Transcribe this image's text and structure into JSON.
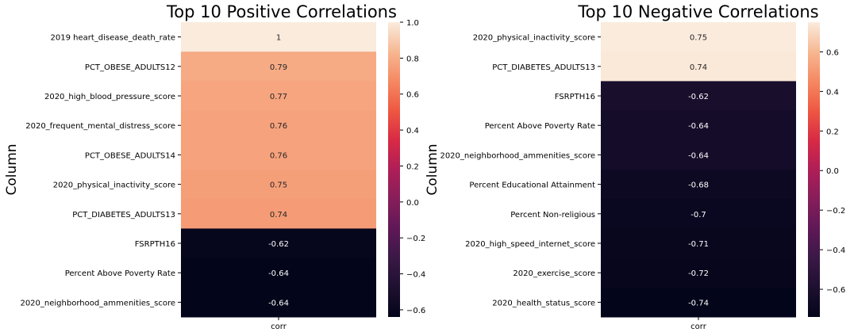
{
  "chart_data": [
    {
      "type": "heatmap",
      "title": "Top 10 Positive Correlations",
      "ylabel": "Column",
      "xlabel": "",
      "x_tick_labels": [
        "corr"
      ],
      "rows": [
        {
          "label": "2019 heart_disease_death_rate",
          "value": 1.0,
          "annotation": "1"
        },
        {
          "label": "PCT_OBESE_ADULTS12",
          "value": 0.79,
          "annotation": "0.79"
        },
        {
          "label": "2020_high_blood_pressure_score",
          "value": 0.77,
          "annotation": "0.77"
        },
        {
          "label": "2020_frequent_mental_distress_score",
          "value": 0.76,
          "annotation": "0.76"
        },
        {
          "label": "PCT_OBESE_ADULTS14",
          "value": 0.76,
          "annotation": "0.76"
        },
        {
          "label": "2020_physical_inactivity_score",
          "value": 0.75,
          "annotation": "0.75"
        },
        {
          "label": "PCT_DIABETES_ADULTS13",
          "value": 0.74,
          "annotation": "0.74"
        },
        {
          "label": "FSRPTH16",
          "value": -0.62,
          "annotation": "-0.62"
        },
        {
          "label": "Percent Above Poverty Rate",
          "value": -0.64,
          "annotation": "-0.64"
        },
        {
          "label": "2020_neighborhood_ammenities_score",
          "value": -0.64,
          "annotation": "-0.64"
        }
      ],
      "colorbar": {
        "colormap": "rocket",
        "vmin": -0.64,
        "vmax": 1.0,
        "ticks": [
          -0.6,
          -0.4,
          -0.2,
          0.0,
          0.2,
          0.4,
          0.6,
          0.8,
          1.0
        ],
        "tick_labels": [
          "−0.6",
          "−0.4",
          "−0.2",
          "0.0",
          "0.2",
          "0.4",
          "0.6",
          "0.8",
          "1.0"
        ]
      }
    },
    {
      "type": "heatmap",
      "title": "Top 10 Negative Correlations",
      "ylabel": "Column",
      "xlabel": "",
      "x_tick_labels": [
        "corr"
      ],
      "rows": [
        {
          "label": "2020_physical_inactivity_score",
          "value": 0.75,
          "annotation": "0.75"
        },
        {
          "label": "PCT_DIABETES_ADULTS13",
          "value": 0.74,
          "annotation": "0.74"
        },
        {
          "label": "FSRPTH16",
          "value": -0.62,
          "annotation": "-0.62"
        },
        {
          "label": "Percent Above Poverty Rate",
          "value": -0.64,
          "annotation": "-0.64"
        },
        {
          "label": "2020_neighborhood_ammenities_score",
          "value": -0.64,
          "annotation": "-0.64"
        },
        {
          "label": "Percent Educational Attainment",
          "value": -0.68,
          "annotation": "-0.68"
        },
        {
          "label": "Percent Non-religious",
          "value": -0.7,
          "annotation": "-0.7"
        },
        {
          "label": "2020_high_speed_internet_score",
          "value": -0.71,
          "annotation": "-0.71"
        },
        {
          "label": "2020_exercise_score",
          "value": -0.72,
          "annotation": "-0.72"
        },
        {
          "label": "2020_health_status_score",
          "value": -0.74,
          "annotation": "-0.74"
        }
      ],
      "colorbar": {
        "colormap": "rocket",
        "vmin": -0.74,
        "vmax": 0.75,
        "ticks": [
          -0.6,
          -0.4,
          -0.2,
          0.0,
          0.2,
          0.4,
          0.6
        ],
        "tick_labels": [
          "−0.6",
          "−0.4",
          "−0.2",
          "0.0",
          "0.2",
          "0.4",
          "0.6"
        ]
      }
    }
  ]
}
